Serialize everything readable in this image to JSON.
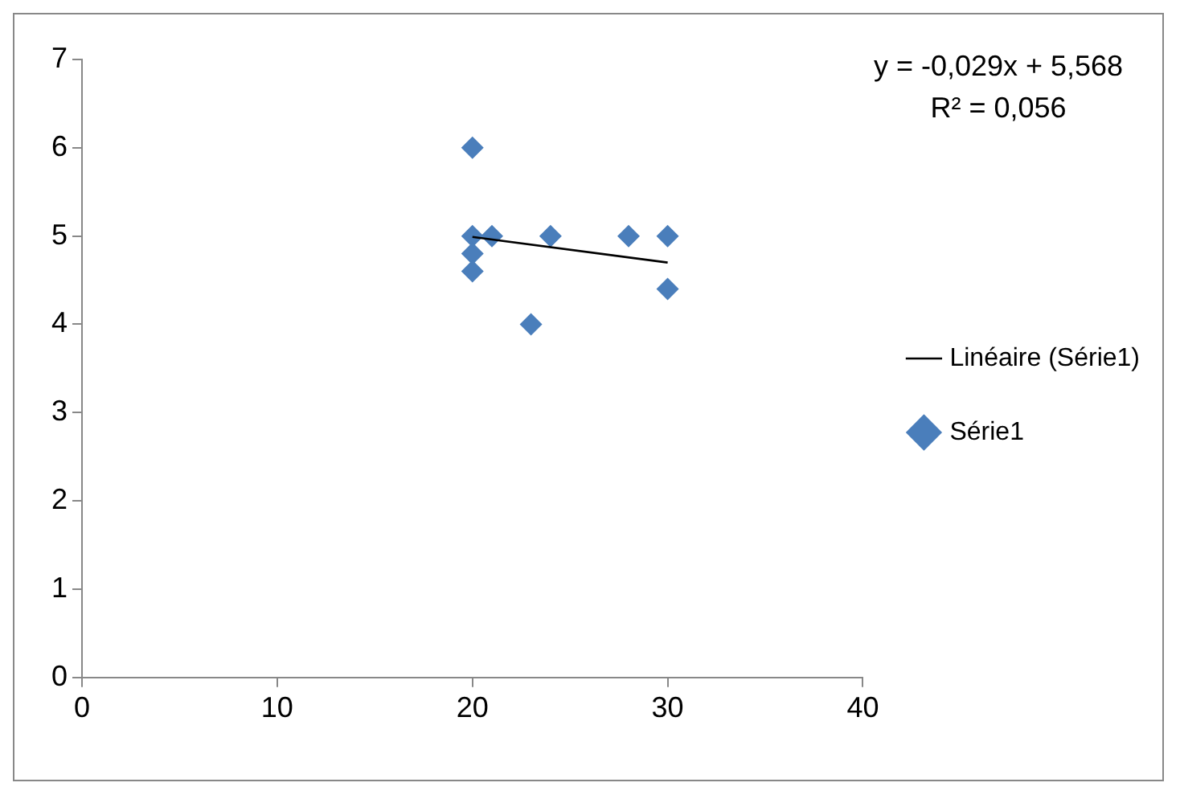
{
  "chart_data": {
    "type": "scatter",
    "xlim": [
      0,
      40
    ],
    "xticks": [
      0,
      10,
      20,
      30,
      40
    ],
    "ylim": [
      0,
      7
    ],
    "yticks": [
      0,
      1,
      2,
      3,
      4,
      5,
      6,
      7
    ],
    "grid": false,
    "legend": "right",
    "marker": "diamond",
    "annotations": [
      "y = -0,029x + 5,568",
      "R² = 0,056"
    ],
    "series": [
      {
        "name": "Série1",
        "color": "#4a7ebb",
        "x": [
          20,
          20,
          21,
          24,
          28,
          30,
          20,
          20,
          23,
          30
        ],
        "values": [
          6,
          5,
          5,
          5,
          5,
          5,
          4.8,
          4.6,
          4,
          4.4
        ]
      },
      {
        "name": "Linéaire (Série1)",
        "type": "line",
        "marker": "none",
        "color": "#000000",
        "x": [
          20,
          30
        ],
        "values": [
          4.99,
          4.7
        ]
      }
    ]
  }
}
